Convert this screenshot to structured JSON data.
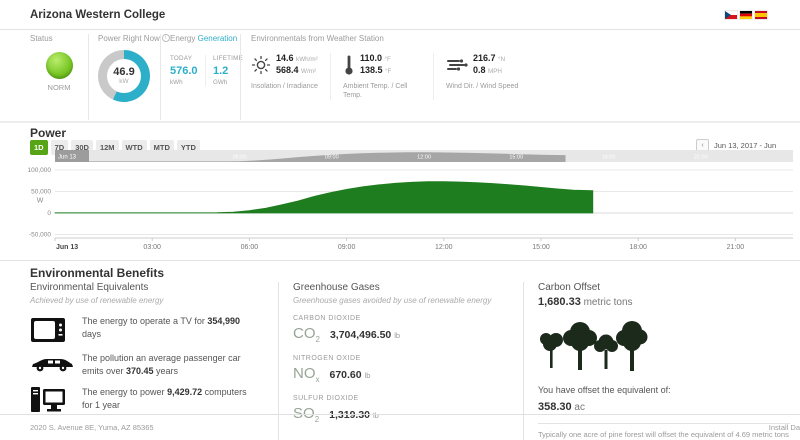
{
  "header": {
    "title": "Arizona Western College",
    "flags": [
      "czech-flag",
      "german-flag",
      "spanish-flag"
    ]
  },
  "status": {
    "label": "Status",
    "value": "NORM"
  },
  "power_now": {
    "label": "Power Right Now",
    "value": "46.9",
    "unit": "kW",
    "gauge_percent": 57,
    "accent": "#2eafc9"
  },
  "energy": {
    "label_prefix": "Energy",
    "label_link": "Generation",
    "today_label": "TODAY",
    "today_value": "576.0",
    "today_unit": "kWh",
    "lifetime_label": "LIFETIME",
    "lifetime_value": "1.2",
    "lifetime_unit": "GWh"
  },
  "environmentals": {
    "label": "Environmentals from Weather Station",
    "metrics": [
      {
        "icon": "sun-icon",
        "v1": "14.6",
        "u1": "kWh/m²",
        "v2": "568.4",
        "u2": "W/m²",
        "caption": "Insolation / Irradiance"
      },
      {
        "icon": "thermometer-icon",
        "v1": "110.0",
        "u1": "°F",
        "v2": "138.5",
        "u2": "°F",
        "caption": "Ambient Temp. / Cell Temp."
      },
      {
        "icon": "wind-icon",
        "v1": "216.7",
        "u1": "°N",
        "v2": "0.8",
        "u2": "MPH",
        "caption": "Wind Dir. / Wind Speed"
      }
    ]
  },
  "power_section": {
    "title": "Power",
    "ranges": [
      "1D",
      "7D",
      "30D",
      "12M",
      "WTD",
      "MTD",
      "YTD"
    ],
    "active_range": "1D",
    "prev_label": "‹",
    "date_label": "Jun 13, 2017 - Jun"
  },
  "chart_data": {
    "type": "area",
    "title": "Power",
    "ylabel": "W",
    "ylim": [
      -50000,
      100000
    ],
    "yticks": [
      {
        "label": "100,000",
        "value": 100000
      },
      {
        "label": "50,000",
        "value": 50000
      },
      {
        "label": "0",
        "value": 0
      },
      {
        "label": "-50,000",
        "value": -50000
      }
    ],
    "xticks": [
      {
        "label": "Jun 13",
        "hour": 0
      },
      {
        "label": "03:00",
        "hour": 3
      },
      {
        "label": "06:00",
        "hour": 6
      },
      {
        "label": "09:00",
        "hour": 9
      },
      {
        "label": "12:00",
        "hour": 12
      },
      {
        "label": "15:00",
        "hour": 15
      },
      {
        "label": "18:00",
        "hour": 18
      },
      {
        "label": "21:00",
        "hour": 21
      }
    ],
    "nav_handle_label": "Jun 13",
    "series": [
      {
        "name": "Power (W)",
        "color": "#1e7d1e",
        "points": [
          [
            0,
            400
          ],
          [
            1,
            400
          ],
          [
            2,
            400
          ],
          [
            3,
            400
          ],
          [
            4,
            400
          ],
          [
            4.5,
            500
          ],
          [
            5,
            800
          ],
          [
            5.5,
            2000
          ],
          [
            6,
            5500
          ],
          [
            6.5,
            11000
          ],
          [
            7,
            19000
          ],
          [
            7.5,
            28000
          ],
          [
            8,
            38500
          ],
          [
            8.5,
            47500
          ],
          [
            9,
            55000
          ],
          [
            9.5,
            61000
          ],
          [
            10,
            65500
          ],
          [
            10.5,
            69000
          ],
          [
            11,
            71500
          ],
          [
            11.5,
            73000
          ],
          [
            12,
            73000
          ],
          [
            12.5,
            72000
          ],
          [
            13,
            70500
          ],
          [
            13.5,
            68500
          ],
          [
            14,
            66000
          ],
          [
            14.5,
            63000
          ],
          [
            15,
            59500
          ],
          [
            15.5,
            56000
          ],
          [
            16,
            53000
          ],
          [
            16.6,
            52000
          ]
        ]
      }
    ],
    "colors": {
      "grid": "#e8e8e8",
      "zero_line": "#d8d8d8",
      "axis": "#cccccc",
      "tick_text": "#777777",
      "nav_bg": "#e7e7e7",
      "nav_series": "#a6a6a6",
      "nav_handle": "#9c9c9c"
    }
  },
  "benefits": {
    "title": "Environmental Benefits",
    "equivalents": {
      "heading": "Environmental Equivalents",
      "subheading": "Achieved by use of renewable energy",
      "items": [
        {
          "icon": "tv-icon",
          "before": "The energy to operate a TV for ",
          "value": "354,990",
          "after": " days"
        },
        {
          "icon": "car-icon",
          "before": "The pollution an average passenger car emits over ",
          "value": "370.45",
          "after": " years"
        },
        {
          "icon": "computer-icon",
          "before": "The energy to power ",
          "value": "9,429.72",
          "after": " computers for 1 year"
        }
      ]
    },
    "gases": {
      "heading": "Greenhouse Gases",
      "subheading": "Greenhouse gases avoided by use of renewable energy",
      "items": [
        {
          "label": "CARBON DIOXIDE",
          "symbol": "CO",
          "sub": "2",
          "value": "3,704,496.50",
          "unit": "lb"
        },
        {
          "label": "NITROGEN OXIDE",
          "symbol": "NO",
          "sub": "x",
          "value": "670.60",
          "unit": "lb"
        },
        {
          "label": "SULFUR DIOXIDE",
          "symbol": "SO",
          "sub": "2",
          "value": "1,319.30",
          "unit": "lb"
        }
      ]
    },
    "offset": {
      "heading": "Carbon Offset",
      "value": "1,680.33",
      "unit": " metric tons",
      "equivalent_label": "You have offset the equivalent of:",
      "equivalent_value": "358.30",
      "equivalent_unit": " ac",
      "footnote": "Typically one acre of pine forest will offset the equivalent of 4.69 metric tons of CO2"
    }
  },
  "footer": {
    "address": "2020 S. Avenue 8E, Yuma, AZ  85365",
    "right_text": "Install Da"
  }
}
